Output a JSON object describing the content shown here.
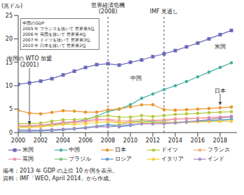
{
  "chart_data": {
    "type": "line",
    "y_label": "(兆ドル)",
    "x": [
      2000,
      2001,
      2002,
      2003,
      2004,
      2005,
      2006,
      2007,
      2008,
      2009,
      2010,
      2011,
      2012,
      2013,
      2014,
      2015,
      2016,
      2017,
      2018,
      2019
    ],
    "xlim": [
      2000,
      2019.5
    ],
    "xticks": [
      2000,
      2002,
      2004,
      2006,
      2008,
      2010,
      2012,
      2014,
      2016,
      2018
    ],
    "ylim": [
      0,
      25
    ],
    "yticks": [
      0,
      5,
      10,
      15,
      20,
      25
    ],
    "grid": false,
    "legend": "bottom",
    "series": [
      {
        "name": "米国",
        "color": "#6a6ab8",
        "marker": "square",
        "values": [
          10.3,
          10.6,
          10.98,
          11.5,
          12.3,
          13.1,
          13.9,
          14.5,
          14.7,
          14.4,
          15.0,
          15.5,
          16.2,
          16.8,
          17.5,
          18.3,
          19.1,
          20.0,
          20.9,
          21.8
        ]
      },
      {
        "name": "中国",
        "color": "#45b0a0",
        "marker": "circle",
        "values": [
          1.2,
          1.3,
          1.45,
          1.64,
          1.93,
          2.26,
          2.71,
          3.49,
          4.52,
          4.99,
          5.93,
          7.32,
          8.23,
          9.18,
          10.0,
          10.9,
          11.9,
          12.9,
          13.9,
          14.9
        ]
      },
      {
        "name": "日本",
        "color": "#e8962e",
        "marker": "circle",
        "values": [
          4.73,
          4.16,
          3.98,
          4.3,
          4.66,
          4.57,
          4.36,
          4.36,
          4.85,
          5.04,
          5.5,
          5.91,
          5.95,
          4.9,
          4.77,
          4.88,
          5.01,
          5.15,
          5.3,
          5.45
        ]
      },
      {
        "name": "ドイツ",
        "color": "#b3c93c",
        "marker": "circle",
        "values": [
          1.89,
          1.88,
          2.01,
          2.42,
          2.73,
          2.77,
          2.9,
          3.32,
          3.62,
          3.3,
          3.28,
          3.63,
          3.43,
          3.63,
          3.88,
          4.0,
          4.1,
          4.25,
          4.35,
          4.45
        ]
      },
      {
        "name": "フランス",
        "color": "#f4b07a",
        "marker": "circle",
        "values": [
          1.33,
          1.34,
          1.45,
          1.79,
          2.06,
          2.14,
          2.26,
          2.58,
          2.83,
          2.62,
          2.57,
          2.78,
          2.61,
          2.74,
          2.9,
          2.97,
          3.05,
          3.14,
          3.23,
          3.33
        ]
      },
      {
        "name": "英国",
        "color": "#ef8fb0",
        "marker": "circle",
        "values": [
          1.48,
          1.47,
          1.61,
          1.86,
          2.2,
          2.32,
          2.48,
          2.86,
          2.68,
          2.21,
          2.29,
          2.43,
          2.47,
          2.52,
          2.85,
          2.95,
          3.07,
          3.2,
          3.33,
          3.47
        ]
      },
      {
        "name": "ブラジル",
        "color": "#7cc77c",
        "marker": "circle",
        "values": [
          0.64,
          0.55,
          0.5,
          0.56,
          0.66,
          0.88,
          1.09,
          1.37,
          1.65,
          1.62,
          2.14,
          2.48,
          2.25,
          2.24,
          2.21,
          2.3,
          2.4,
          2.55,
          2.7,
          2.87
        ]
      },
      {
        "name": "ロシア",
        "color": "#5b9bd5",
        "marker": "circle",
        "values": [
          0.26,
          0.31,
          0.35,
          0.43,
          0.59,
          0.76,
          0.99,
          1.3,
          1.66,
          1.22,
          1.52,
          1.9,
          2.02,
          2.1,
          2.09,
          2.2,
          2.35,
          2.5,
          2.65,
          2.8
        ]
      },
      {
        "name": "イタリア",
        "color": "#f2cf3a",
        "marker": "circle",
        "values": [
          1.1,
          1.12,
          1.22,
          1.51,
          1.73,
          1.78,
          1.87,
          2.13,
          2.31,
          2.11,
          2.06,
          2.2,
          2.01,
          2.07,
          2.17,
          2.22,
          2.27,
          2.32,
          2.37,
          2.42
        ]
      },
      {
        "name": "インド",
        "color": "#a98bc9",
        "marker": "circle",
        "values": [
          0.48,
          0.49,
          0.52,
          0.62,
          0.72,
          0.83,
          0.95,
          1.24,
          1.22,
          1.37,
          1.71,
          1.87,
          1.86,
          1.88,
          2.05,
          2.29,
          2.54,
          2.8,
          3.08,
          3.38
        ]
      }
    ],
    "events": [
      {
        "text": "世界経済危機\n(2008)",
        "x": 2008
      },
      {
        "text": "IMF 見通し",
        "x": 2013
      }
    ],
    "box": {
      "x": 2000.2,
      "y": 24.3,
      "text": [
        "中国のGDP",
        "2005 年 フランスを抜いて 世界第5位",
        "2006 年 英国を抜いて 世界第4位",
        "2007 年 ドイツを抜いて 世界第3位",
        "2010 年 日本を抜いて 世界第2位"
      ]
    },
    "annotations": [
      {
        "text": "中国の WTO 加盟\n(2001)",
        "x": 2001,
        "y": 13.8,
        "arrow_to": 1.8
      },
      {
        "text": "米国",
        "x": 2018,
        "y": 17.6
      },
      {
        "text": "中国",
        "x": 2010.5,
        "y": 11
      },
      {
        "text": "日本",
        "x": 2018,
        "y": 8.3,
        "arrow_to": 5.9
      }
    ],
    "notes": [
      "備考：2013 年 GDP の上位 10 か国を表示。",
      "資料：IMF「WEO, April 2014」から作成。"
    ]
  }
}
